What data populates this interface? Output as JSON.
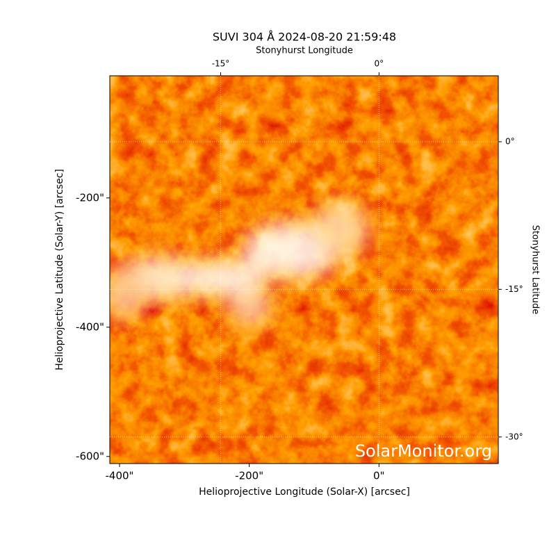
{
  "chart_data": {
    "type": "image",
    "title": "SUVI 304 Å 2024-08-20 21:59:48",
    "xlabel": "Helioprojective Longitude (Solar-X) [arcsec]",
    "ylabel": "Helioprojective Latitude (Solar-Y) [arcsec]",
    "x2label": "Stonyhurst Longitude",
    "y2label": "Stonyhurst Latitude",
    "xlim": [
      -415,
      184
    ],
    "xticks": [
      {
        "value": -400,
        "label": "-400\""
      },
      {
        "value": -200,
        "label": "-200\""
      },
      {
        "value": 0,
        "label": "0\""
      }
    ],
    "ylim": [
      -611,
      -11
    ],
    "yticks": [
      {
        "value": -200,
        "label": "-200\""
      },
      {
        "value": -400,
        "label": "-400\""
      },
      {
        "value": -600,
        "label": "-600\""
      }
    ],
    "x2lim": [
      -25.5,
      11.3
    ],
    "x2ticks": [
      {
        "value": -15,
        "label": "-15°"
      },
      {
        "value": 0,
        "label": "0°"
      }
    ],
    "y2lim": [
      -32.7,
      6.7
    ],
    "y2ticks": [
      {
        "value": 0,
        "label": "0°"
      },
      {
        "value": -15,
        "label": "-15°"
      },
      {
        "value": -30,
        "label": "-30°"
      }
    ],
    "grid": true,
    "annotation": "SolarMonitor.org"
  }
}
